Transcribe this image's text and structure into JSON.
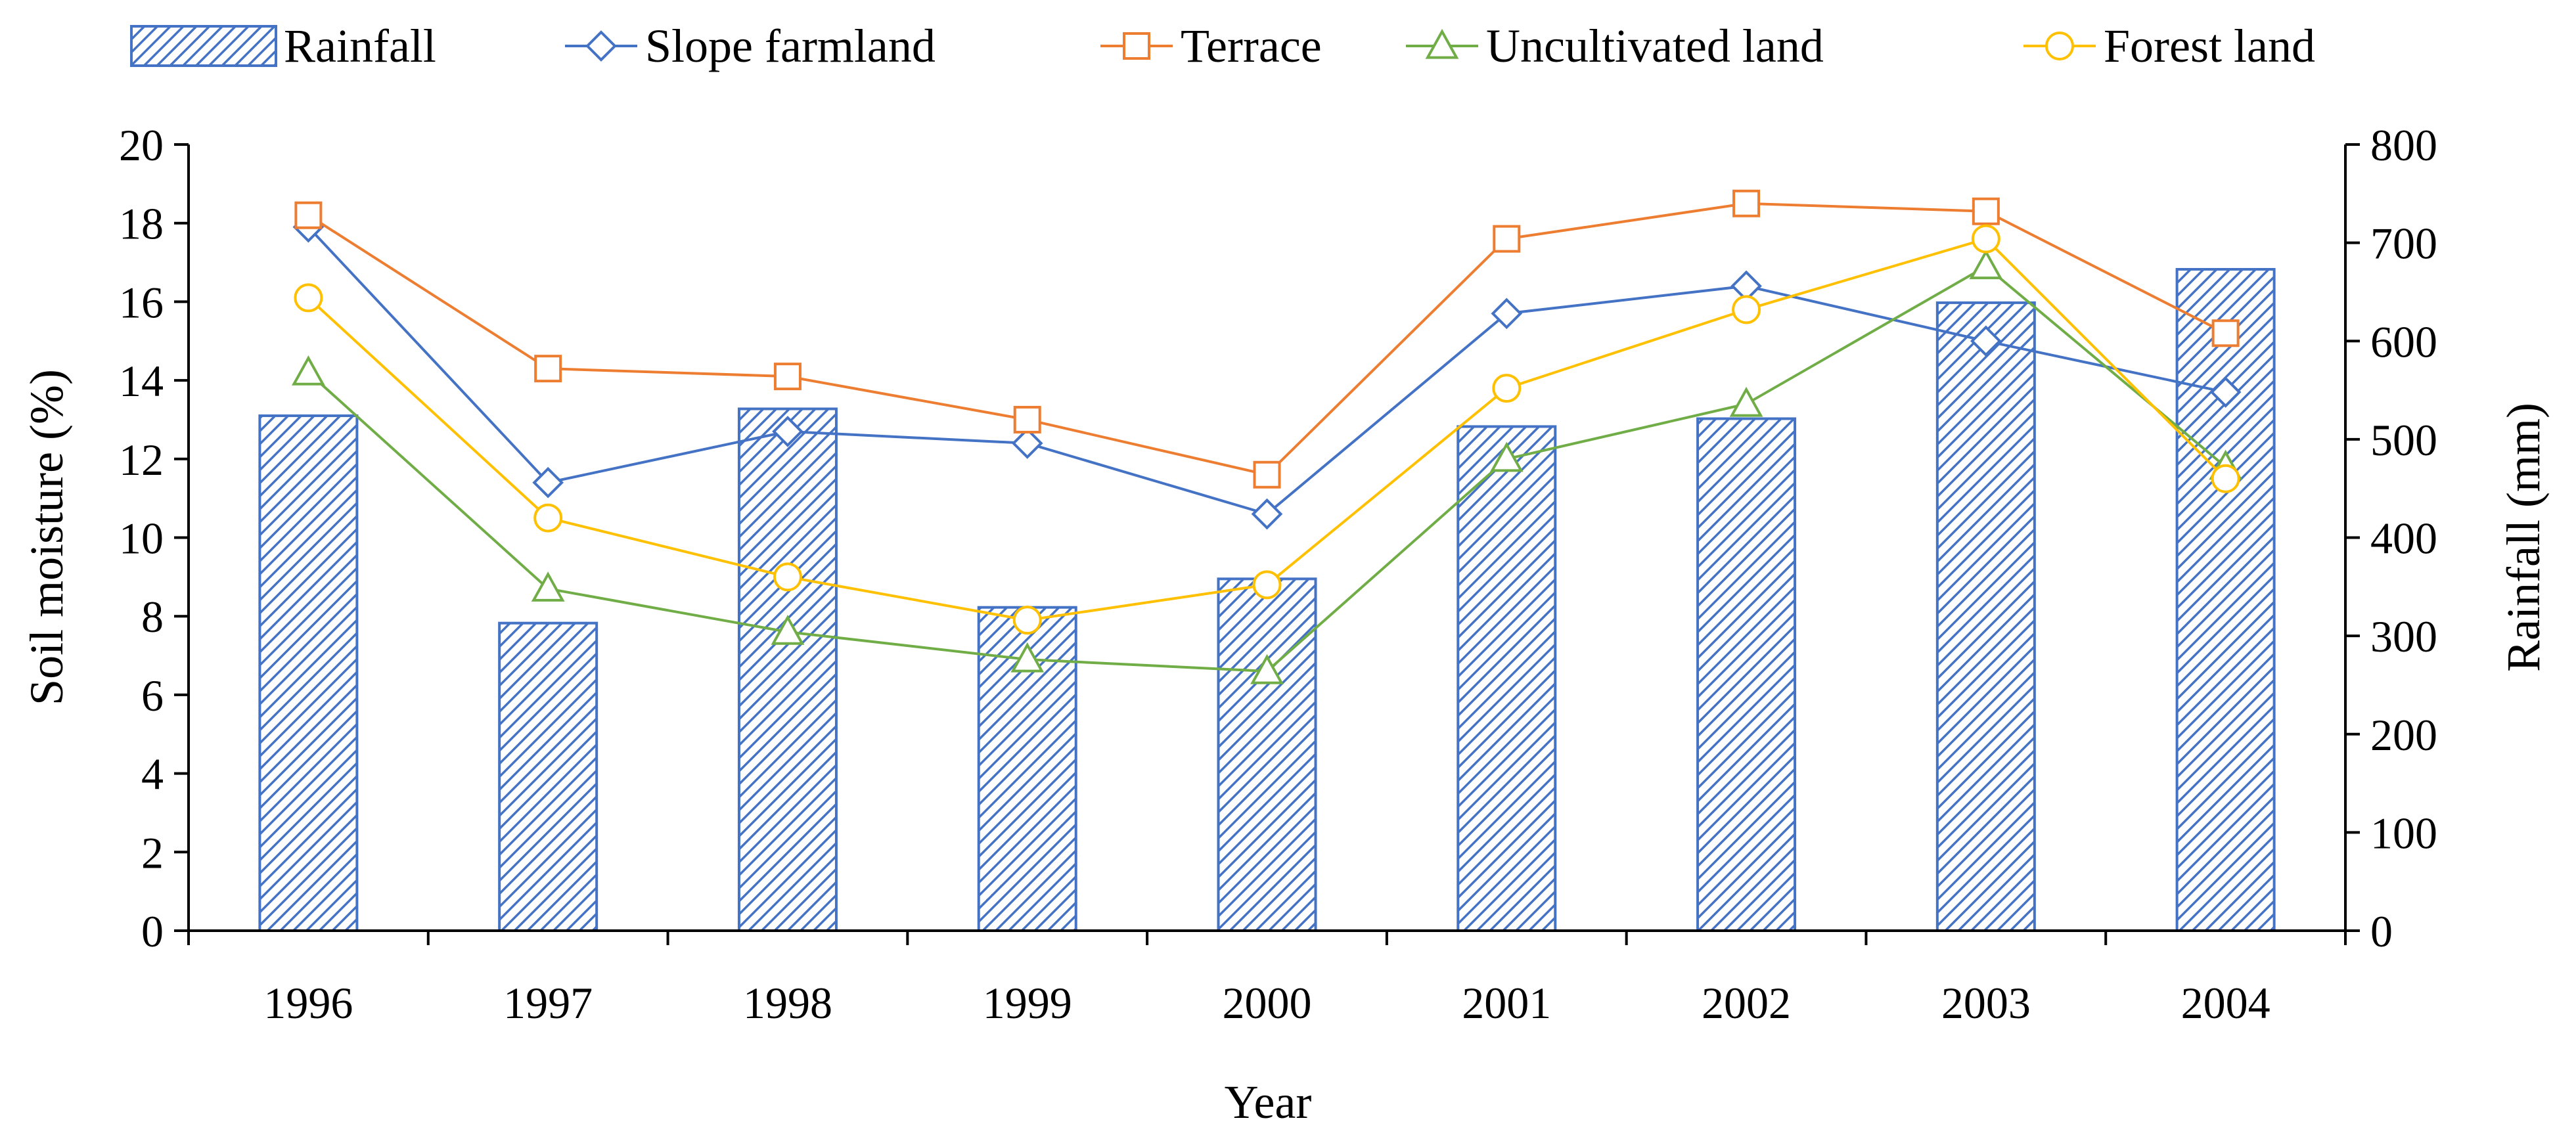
{
  "chart_data": {
    "type": "bar+line",
    "categories": [
      "1996",
      "1997",
      "1998",
      "1999",
      "2000",
      "2001",
      "2002",
      "2003",
      "2004"
    ],
    "xlabel": "Year",
    "ylabel_left": "Soil moisture (%)",
    "ylabel_right": "Rainfall (mm)",
    "ylim_left": [
      0,
      20
    ],
    "ylim_right": [
      0,
      800
    ],
    "yticks_left": [
      "0",
      "2",
      "4",
      "6",
      "8",
      "10",
      "12",
      "14",
      "16",
      "18",
      "20"
    ],
    "yticks_right": [
      "0",
      "100",
      "200",
      "300",
      "400",
      "500",
      "600",
      "700",
      "800"
    ],
    "bars": {
      "name": "Rainfall",
      "axis": "right",
      "values": [
        524,
        313,
        531,
        329,
        358,
        513,
        521,
        639,
        673
      ],
      "color": "#4472C4"
    },
    "series": [
      {
        "name": "Slope farmland",
        "marker": "diamond",
        "color": "#4472C4",
        "values": [
          17.9,
          11.4,
          12.7,
          12.4,
          10.6,
          15.7,
          16.4,
          15.0,
          13.7
        ]
      },
      {
        "name": "Terrace",
        "marker": "square",
        "color": "#ED7D31",
        "values": [
          18.2,
          14.3,
          14.1,
          13.0,
          11.6,
          17.6,
          18.5,
          18.3,
          15.2
        ]
      },
      {
        "name": "Uncultivated land",
        "marker": "triangle",
        "color": "#70AD47",
        "values": [
          14.2,
          8.7,
          7.6,
          6.9,
          6.6,
          12.0,
          13.4,
          16.9,
          11.8
        ]
      },
      {
        "name": "Forest land",
        "marker": "circle",
        "color": "#FFC000",
        "values": [
          16.1,
          10.5,
          9.0,
          7.9,
          8.8,
          13.8,
          15.8,
          17.6,
          11.5
        ]
      }
    ],
    "legend_position": "top"
  }
}
